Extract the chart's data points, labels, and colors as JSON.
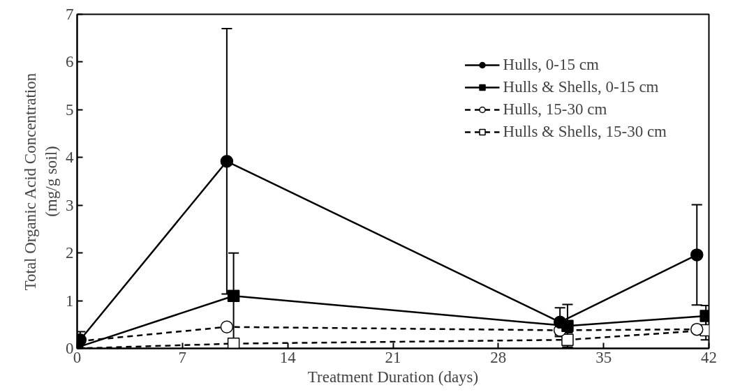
{
  "chart_data": {
    "type": "line",
    "xlabel": "Treatment Duration (days)",
    "ylabel": "Total Organic Acid Concentration\n(mg/g soil)",
    "xlim": [
      0,
      42
    ],
    "ylim": [
      0,
      7
    ],
    "xticks": [
      0,
      7,
      14,
      21,
      28,
      35,
      42
    ],
    "yticks": [
      0,
      1,
      2,
      3,
      4,
      5,
      6,
      7
    ],
    "grid": false,
    "legend": "top right",
    "series": [
      {
        "name": "Hulls, 0-15 cm",
        "color": "#000000",
        "marker": "circle",
        "line_style": "solid",
        "x": [
          0.2,
          9.95,
          32.1,
          41.2
        ],
        "values": [
          0.18,
          3.92,
          0.55,
          1.96
        ],
        "errors": [
          0.17,
          2.78,
          0.3,
          1.05
        ]
      },
      {
        "name": "Hulls & Shells, 0-15 cm",
        "color": "#000000",
        "marker": "square",
        "line_style": "solid",
        "x": [
          0,
          10.4,
          32.6,
          41.8
        ],
        "values": [
          0.02,
          1.1,
          0.47,
          0.68
        ],
        "errors": [
          null,
          0.9,
          0.45,
          0.22
        ]
      },
      {
        "name": "Hulls, 15-30 cm",
        "color": "#000000",
        "marker": "circle",
        "line_style": "dashed",
        "x": [
          0.1,
          9.95,
          32.1,
          41.2
        ],
        "values": [
          0.15,
          0.45,
          0.38,
          0.4
        ],
        "errors": [
          null,
          null,
          0.1,
          null
        ]
      },
      {
        "name": "Hulls & Shells, 15-30 cm",
        "color": "#000000",
        "marker": "square",
        "line_style": "dashed",
        "x": [
          0,
          10.4,
          32.6,
          41.8
        ],
        "values": [
          0.0,
          0.1,
          0.18,
          0.38
        ],
        "errors": [
          null,
          0.1,
          0.15,
          0.2
        ]
      }
    ]
  }
}
